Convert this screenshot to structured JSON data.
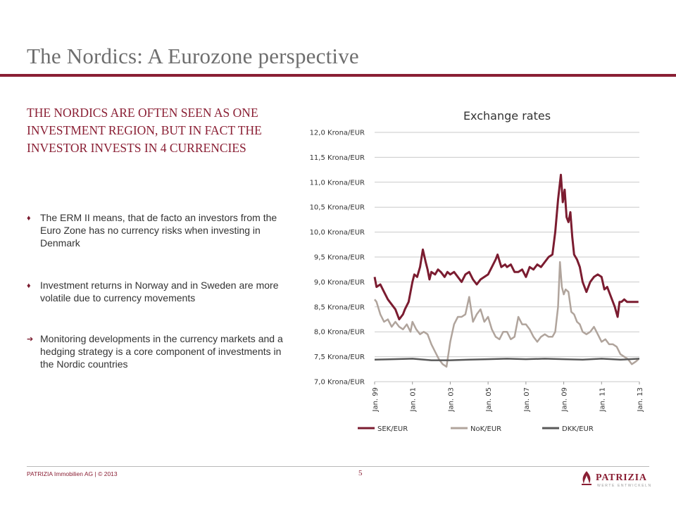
{
  "slide": {
    "title": "The Nordics: A Eurozone perspective",
    "headline": "THE NORDICS ARE OFTEN SEEN AS ONE INVESTMENT REGION, BUT IN FACT THE INVESTOR INVESTS IN 4 CURRENCIES",
    "bullets": [
      {
        "marker": "♦",
        "text": "The ERM II means, that de facto an investors from the Euro Zone has no currency risks when investing in Denmark"
      },
      {
        "marker": "♦",
        "text": "Investment returns in Norway and in Sweden are more volatile due to currency movements"
      },
      {
        "marker": "➔",
        "text": "Monitoring developments in the currency markets and a hedging strategy is a core component of investments in the Nordic countries"
      }
    ]
  },
  "footer": {
    "left_text": "PATRIZIA Immobilien AG | © 2013",
    "page_number": "5",
    "logo_text": "PATRIZIA",
    "logo_subtext": "WERTE ENTWICKELN"
  },
  "colors": {
    "accent": "#8a1f34",
    "sek": "#7b1c30",
    "nok": "#b0a49c",
    "dkk": "#595959"
  },
  "chart_data": {
    "type": "line",
    "title": "Exchange rates",
    "xlabel": "",
    "ylabel": "",
    "ylim": [
      7.0,
      12.0
    ],
    "yticks": [
      7.0,
      7.5,
      8.0,
      8.5,
      9.0,
      9.5,
      10.0,
      10.5,
      11.0,
      11.5,
      12.0
    ],
    "ytick_labels": [
      "7,0 Krona/EUR",
      "7,5 Krona/EUR",
      "8,0 Krona/EUR",
      "8,5 Krona/EUR",
      "9,0 Krona/EUR",
      "9,5 Krona/EUR",
      "10,0 Krona/EUR",
      "10,5 Krona/EUR",
      "11,0 Krona/EUR",
      "11,5 Krona/EUR",
      "12,0 Krona/EUR"
    ],
    "xlim": [
      1999.0,
      2013.0
    ],
    "xticks": [
      1999,
      2001,
      2003,
      2005,
      2007,
      2009,
      2011,
      2013
    ],
    "xtick_labels": [
      "Jan. 99",
      "Jan. 01",
      "Jan. 03",
      "Jan. 05",
      "Jan. 07",
      "Jan. 09",
      "Jan. 11",
      "Jan. 13"
    ],
    "grid": true,
    "legend_position": "bottom",
    "series": [
      {
        "name": "SEK/EUR",
        "color_key": "sek",
        "x": [
          1999.0,
          1999.1,
          1999.3,
          1999.5,
          1999.7,
          1999.9,
          2000.1,
          2000.3,
          2000.5,
          2000.6,
          2000.8,
          2001.0,
          2001.1,
          2001.25,
          2001.4,
          2001.55,
          2001.7,
          2001.8,
          2001.9,
          2002.0,
          2002.2,
          2002.35,
          2002.5,
          2002.7,
          2002.85,
          2003.0,
          2003.2,
          2003.4,
          2003.6,
          2003.8,
          2004.0,
          2004.2,
          2004.4,
          2004.6,
          2004.8,
          2005.0,
          2005.2,
          2005.4,
          2005.5,
          2005.7,
          2005.9,
          2006.0,
          2006.2,
          2006.4,
          2006.6,
          2006.8,
          2007.0,
          2007.2,
          2007.4,
          2007.6,
          2007.8,
          2008.0,
          2008.2,
          2008.4,
          2008.55,
          2008.7,
          2008.85,
          2008.95,
          2009.05,
          2009.15,
          2009.25,
          2009.35,
          2009.45,
          2009.55,
          2009.7,
          2009.85,
          2010.0,
          2010.2,
          2010.4,
          2010.6,
          2010.8,
          2011.0,
          2011.15,
          2011.3,
          2011.5,
          2011.7,
          2011.85,
          2011.95,
          2012.05,
          2012.2,
          2012.35,
          2012.5,
          2012.65,
          2012.8,
          2012.95
        ],
        "y": [
          9.1,
          8.9,
          8.95,
          8.8,
          8.65,
          8.55,
          8.45,
          8.25,
          8.35,
          8.45,
          8.6,
          9.0,
          9.15,
          9.1,
          9.3,
          9.65,
          9.4,
          9.25,
          9.05,
          9.2,
          9.15,
          9.25,
          9.2,
          9.1,
          9.2,
          9.15,
          9.2,
          9.1,
          9.0,
          9.15,
          9.2,
          9.05,
          8.95,
          9.05,
          9.1,
          9.15,
          9.3,
          9.45,
          9.55,
          9.3,
          9.35,
          9.3,
          9.35,
          9.2,
          9.2,
          9.25,
          9.1,
          9.3,
          9.25,
          9.35,
          9.3,
          9.4,
          9.5,
          9.55,
          10.0,
          10.65,
          11.15,
          10.6,
          10.85,
          10.3,
          10.2,
          10.4,
          9.9,
          9.55,
          9.45,
          9.3,
          9.0,
          8.8,
          9.0,
          9.1,
          9.15,
          9.1,
          8.85,
          8.9,
          8.7,
          8.5,
          8.3,
          8.6,
          8.6,
          8.65,
          8.6,
          8.6,
          8.6,
          8.6,
          8.6
        ]
      },
      {
        "name": "NoK/EUR",
        "color_key": "nok",
        "x": [
          1999.0,
          1999.1,
          1999.3,
          1999.5,
          1999.7,
          1999.9,
          2000.1,
          2000.3,
          2000.5,
          2000.7,
          2000.9,
          2001.0,
          2001.2,
          2001.4,
          2001.6,
          2001.8,
          2002.0,
          2002.2,
          2002.4,
          2002.6,
          2002.8,
          2003.0,
          2003.2,
          2003.4,
          2003.6,
          2003.8,
          2004.0,
          2004.2,
          2004.4,
          2004.6,
          2004.8,
          2005.0,
          2005.2,
          2005.4,
          2005.6,
          2005.8,
          2006.0,
          2006.2,
          2006.4,
          2006.6,
          2006.8,
          2007.0,
          2007.2,
          2007.4,
          2007.6,
          2007.8,
          2008.0,
          2008.2,
          2008.4,
          2008.55,
          2008.7,
          2008.8,
          2008.9,
          2009.0,
          2009.1,
          2009.25,
          2009.4,
          2009.55,
          2009.7,
          2009.85,
          2010.0,
          2010.2,
          2010.4,
          2010.6,
          2010.8,
          2011.0,
          2011.2,
          2011.4,
          2011.6,
          2011.8,
          2012.0,
          2012.2,
          2012.4,
          2012.6,
          2012.8,
          2012.95
        ],
        "y": [
          8.65,
          8.6,
          8.35,
          8.2,
          8.25,
          8.1,
          8.2,
          8.1,
          8.05,
          8.15,
          8.0,
          8.2,
          8.05,
          7.95,
          8.0,
          7.95,
          7.75,
          7.6,
          7.45,
          7.35,
          7.3,
          7.8,
          8.15,
          8.3,
          8.3,
          8.35,
          8.7,
          8.2,
          8.35,
          8.45,
          8.2,
          8.3,
          8.05,
          7.9,
          7.85,
          8.0,
          8.0,
          7.85,
          7.9,
          8.3,
          8.15,
          8.15,
          8.05,
          7.9,
          7.8,
          7.9,
          7.95,
          7.9,
          7.9,
          8.0,
          8.5,
          9.4,
          8.9,
          8.75,
          8.85,
          8.8,
          8.4,
          8.35,
          8.2,
          8.15,
          8.0,
          7.95,
          8.0,
          8.1,
          7.95,
          7.8,
          7.85,
          7.75,
          7.75,
          7.7,
          7.55,
          7.5,
          7.45,
          7.35,
          7.4,
          7.45
        ]
      },
      {
        "name": "DKK/EUR",
        "color_key": "dkk",
        "x": [
          1999.0,
          2000.0,
          2001.0,
          2002.0,
          2003.0,
          2004.0,
          2005.0,
          2006.0,
          2007.0,
          2008.0,
          2009.0,
          2010.0,
          2011.0,
          2012.0,
          2013.0
        ],
        "y": [
          7.44,
          7.45,
          7.46,
          7.43,
          7.43,
          7.44,
          7.45,
          7.46,
          7.45,
          7.46,
          7.45,
          7.44,
          7.46,
          7.44,
          7.46
        ]
      }
    ]
  }
}
